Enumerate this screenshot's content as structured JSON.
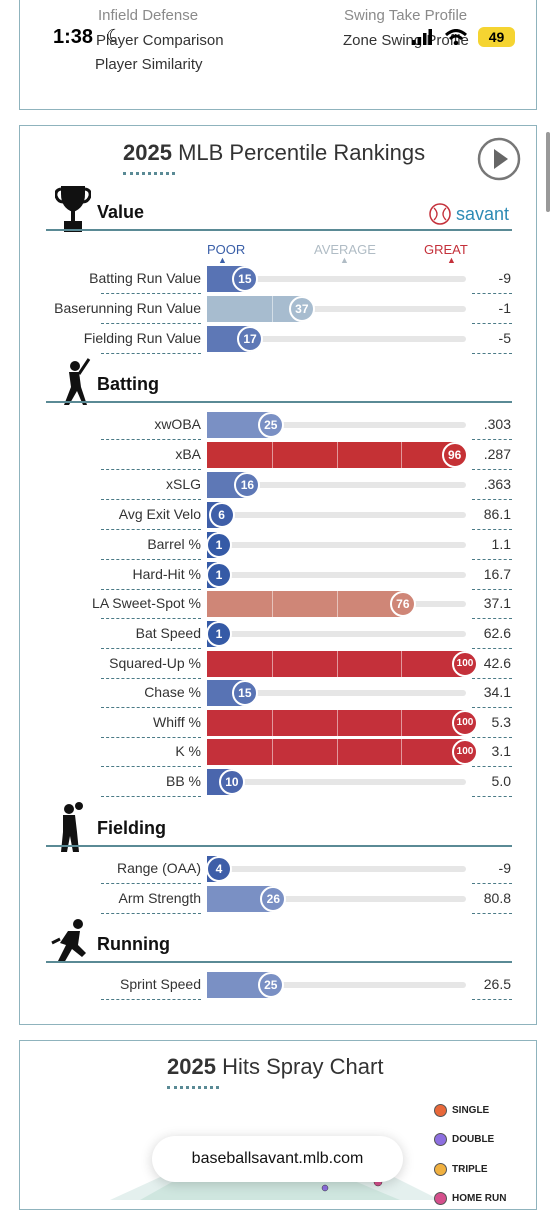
{
  "status_bar": {
    "time": "1:38",
    "battery": "49"
  },
  "top_nav": {
    "left": [
      "Infield Defense",
      "Player Comparison",
      "Player Similarity"
    ],
    "right": [
      "Swing Take Profile",
      "Zone Swing Profile"
    ]
  },
  "rankings": {
    "year": "2025",
    "title": "MLB Percentile Rankings",
    "savant_label": "savant",
    "scale": {
      "poor": "POOR",
      "average": "AVERAGE",
      "great": "GREAT"
    },
    "sections": [
      {
        "name": "Value",
        "icon": "trophy-icon",
        "rows": [
          {
            "label": "Batting Run Value",
            "pct": 15,
            "value": "-9",
            "color": "#5873b4"
          },
          {
            "label": "Baserunning Run Value",
            "pct": 37,
            "value": "-1",
            "color": "#a7bccf"
          },
          {
            "label": "Fielding Run Value",
            "pct": 17,
            "value": "-5",
            "color": "#5e78b6"
          }
        ]
      },
      {
        "name": "Batting",
        "icon": "batter-icon",
        "rows": [
          {
            "label": "xwOBA",
            "pct": 25,
            "value": ".303",
            "color": "#7a90c4"
          },
          {
            "label": "xBA",
            "pct": 96,
            "value": ".287",
            "color": "#c53135"
          },
          {
            "label": "xSLG",
            "pct": 16,
            "value": ".363",
            "color": "#5e78b6"
          },
          {
            "label": "Avg Exit Velo",
            "pct": 6,
            "value": "86.1",
            "color": "#3e5ea8"
          },
          {
            "label": "Barrel %",
            "pct": 1,
            "value": "1.1",
            "color": "#355aa6"
          },
          {
            "label": "Hard-Hit %",
            "pct": 1,
            "value": "16.7",
            "color": "#355aa6"
          },
          {
            "label": "LA Sweet-Spot %",
            "pct": 76,
            "value": "37.1",
            "color": "#cf8677"
          },
          {
            "label": "Bat Speed",
            "pct": 1,
            "value": "62.6",
            "color": "#355aa6"
          },
          {
            "label": "Squared-Up %",
            "pct": 100,
            "value": "42.6",
            "color": "#c4303a"
          },
          {
            "label": "Chase %",
            "pct": 15,
            "value": "34.1",
            "color": "#5873b4"
          },
          {
            "label": "Whiff %",
            "pct": 100,
            "value": "5.3",
            "color": "#c4303a"
          },
          {
            "label": "K %",
            "pct": 100,
            "value": "3.1",
            "color": "#c4303a"
          },
          {
            "label": "BB %",
            "pct": 10,
            "value": "5.0",
            "color": "#4a66ad"
          }
        ]
      },
      {
        "name": "Fielding",
        "icon": "fielder-icon",
        "rows": [
          {
            "label": "Range (OAA)",
            "pct": 4,
            "value": "-9",
            "color": "#3e5ea8"
          },
          {
            "label": "Arm Strength",
            "pct": 26,
            "value": "80.8",
            "color": "#7a90c4"
          }
        ]
      },
      {
        "name": "Running",
        "icon": "runner-icon",
        "rows": [
          {
            "label": "Sprint Speed",
            "pct": 25,
            "value": "26.5",
            "color": "#7a90c4"
          }
        ]
      }
    ]
  },
  "spray": {
    "year": "2025",
    "title": "Hits Spray Chart",
    "legend": [
      {
        "label": "SINGLE",
        "color": "#e8683a"
      },
      {
        "label": "DOUBLE",
        "color": "#8d6fe0"
      },
      {
        "label": "TRIPLE",
        "color": "#f0b040"
      },
      {
        "label": "HOME RUN",
        "color": "#d54f8c"
      }
    ]
  },
  "url_bar": {
    "text": "baseballsavant.mlb.com"
  },
  "colors": {
    "accent": "#5a8a95",
    "poor": "#2a5caa",
    "great": "#c4303a"
  }
}
